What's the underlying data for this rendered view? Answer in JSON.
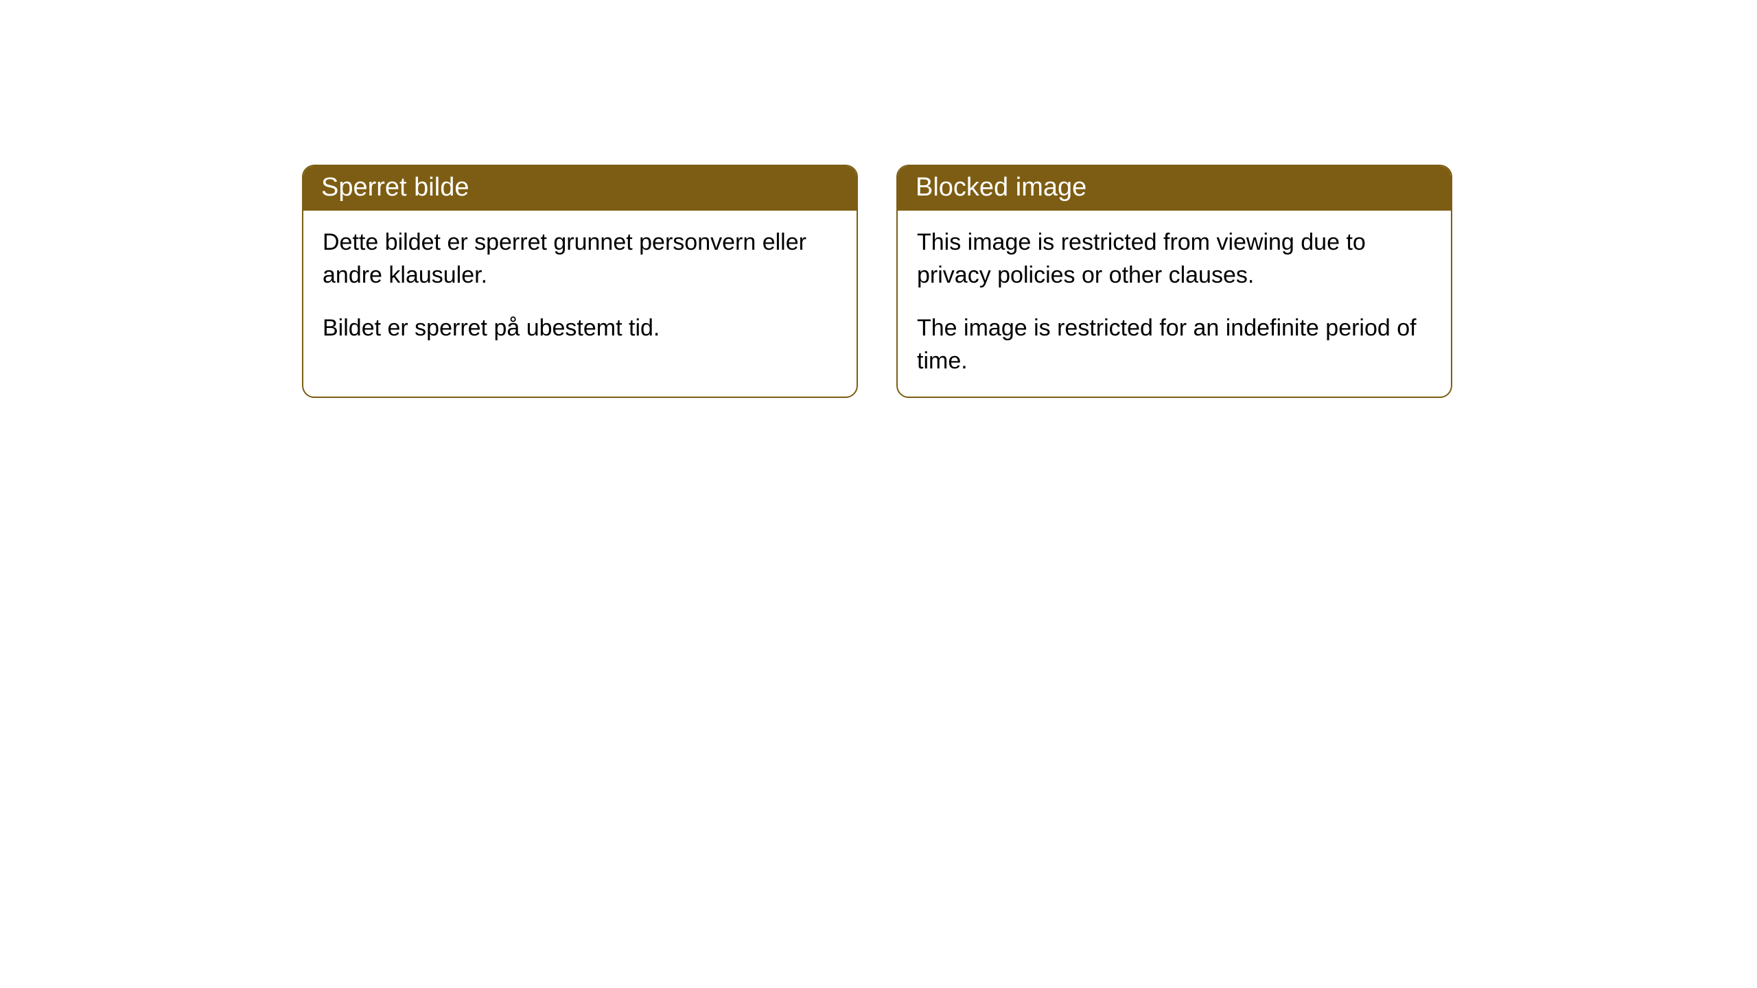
{
  "cards": [
    {
      "title": "Sperret bilde",
      "paragraph1": "Dette bildet er sperret grunnet personvern eller andre klausuler.",
      "paragraph2": "Bildet er sperret på ubestemt tid."
    },
    {
      "title": "Blocked image",
      "paragraph1": "This image is restricted from viewing due to privacy policies or other clauses.",
      "paragraph2": "The image is restricted for an indefinite period of time."
    }
  ],
  "style": {
    "header_bg_color": "#7d5d13",
    "header_text_color": "#ffffff",
    "border_color": "#7d5d13",
    "body_bg_color": "#ffffff",
    "body_text_color": "#000000",
    "border_radius": 18,
    "header_font_size": 38,
    "body_font_size": 34
  }
}
